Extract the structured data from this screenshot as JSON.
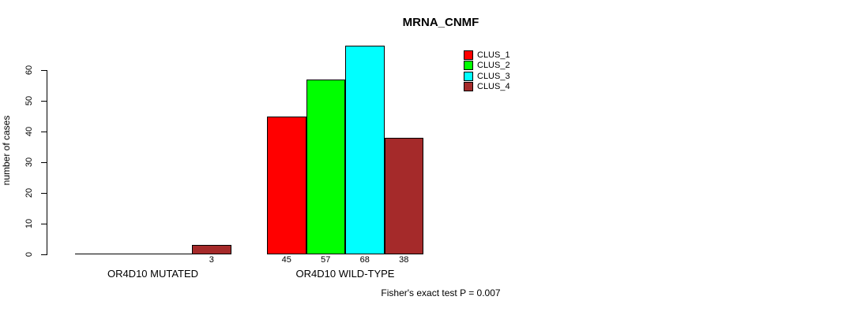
{
  "chart_data": {
    "type": "bar",
    "title": "MRNA_CNMF",
    "xlabel": "",
    "ylabel": "number of cases",
    "ylim": [
      0,
      60
    ],
    "yticks": [
      "0",
      "10",
      "20",
      "30",
      "40",
      "50",
      "60"
    ],
    "grid": false,
    "legend_position": "top-right",
    "background_color": "#ffffff",
    "axis_color": "#000000",
    "legend": [
      {
        "name": "CLUS_1",
        "color": "#ff0000"
      },
      {
        "name": "CLUS_2",
        "color": "#00ff00"
      },
      {
        "name": "CLUS_3",
        "color": "#00ffff"
      },
      {
        "name": "CLUS_4",
        "color": "#a52a2a"
      }
    ],
    "groups": [
      {
        "label": "OR4D10 MUTATED",
        "values": [
          0,
          0,
          0,
          3
        ],
        "value_labels": [
          "",
          "",
          "",
          "3"
        ]
      },
      {
        "label": "OR4D10 WILD-TYPE",
        "values": [
          45,
          57,
          68,
          38
        ],
        "value_labels": [
          "45",
          "57",
          "68",
          "38"
        ]
      }
    ],
    "annotation": "Fisher's exact test P = 0.007"
  }
}
